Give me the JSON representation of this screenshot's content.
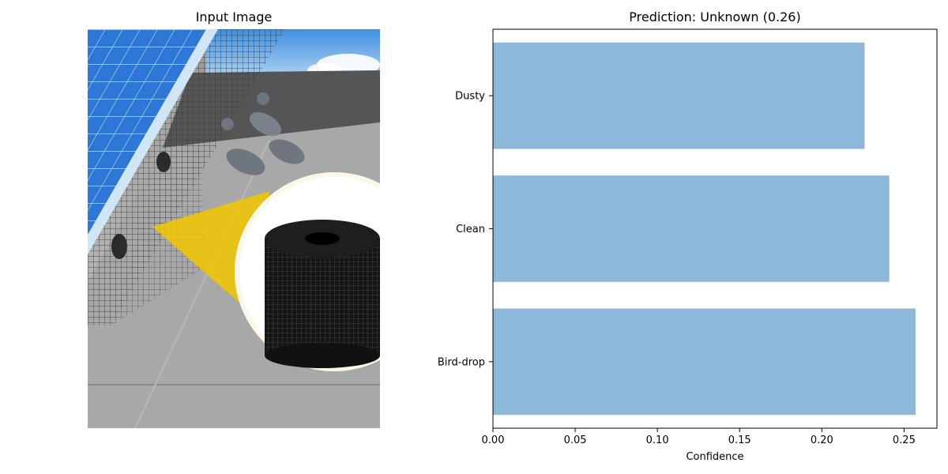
{
  "left_panel": {
    "title": "Input Image"
  },
  "right_panel": {
    "title": "Prediction: Unknown (0.26)"
  },
  "chart_data": {
    "type": "bar",
    "orientation": "horizontal",
    "categories": [
      "Bird-drop",
      "Clean",
      "Dusty"
    ],
    "values": [
      0.257,
      0.241,
      0.226
    ],
    "title": "Prediction: Unknown (0.26)",
    "xlabel": "Confidence",
    "ylabel": "",
    "xlim": [
      0,
      0.27
    ],
    "xticks": [
      0.0,
      0.05,
      0.1,
      0.15,
      0.2,
      0.25
    ],
    "xtick_labels": [
      "0.00",
      "0.05",
      "0.10",
      "0.15",
      "0.20",
      "0.25"
    ],
    "bar_color": "#8db8d9",
    "grid": false
  }
}
